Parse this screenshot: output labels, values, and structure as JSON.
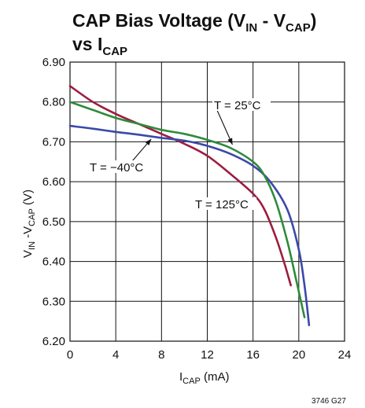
{
  "chart_data": {
    "type": "line",
    "title": {
      "line1_main": "CAP Bias Voltage (V",
      "line1_sub1": "IN",
      "line1_mid": " - V",
      "line1_sub2": "CAP",
      "line1_end": ")",
      "line2_main": "vs I",
      "line2_sub": "CAP"
    },
    "xlabel": {
      "main": "I",
      "sub": "CAP",
      "rest": " (mA)"
    },
    "ylabel": {
      "main1": "V",
      "sub1": "IN",
      "mid": " -V",
      "sub2": "CAP",
      "rest": " (V)"
    },
    "xlim": [
      0,
      24
    ],
    "ylim": [
      6.2,
      6.9
    ],
    "x_ticks": [
      "0",
      "4",
      "8",
      "12",
      "16",
      "20",
      "24"
    ],
    "y_ticks": [
      "6.20",
      "6.30",
      "6.40",
      "6.50",
      "6.60",
      "6.70",
      "6.80",
      "6.90"
    ],
    "grid": true,
    "colors": {
      "t25": "#2e8b3a",
      "tneg40": "#3a49a8",
      "t125": "#9e1c40"
    },
    "series": [
      {
        "name": "T = 25°C",
        "color_key": "t25",
        "points": [
          [
            0,
            6.8
          ],
          [
            2,
            6.78
          ],
          [
            4,
            6.76
          ],
          [
            6,
            6.745
          ],
          [
            8,
            6.73
          ],
          [
            10,
            6.72
          ],
          [
            12,
            6.705
          ],
          [
            14,
            6.685
          ],
          [
            16,
            6.65
          ],
          [
            17,
            6.615
          ],
          [
            18,
            6.55
          ],
          [
            19,
            6.45
          ],
          [
            19.8,
            6.35
          ],
          [
            20.5,
            6.26
          ]
        ]
      },
      {
        "name": "T = −40°C",
        "color_key": "tneg40",
        "points": [
          [
            0,
            6.74
          ],
          [
            2,
            6.733
          ],
          [
            4,
            6.725
          ],
          [
            6,
            6.718
          ],
          [
            8,
            6.71
          ],
          [
            10,
            6.703
          ],
          [
            12,
            6.69
          ],
          [
            14,
            6.67
          ],
          [
            16,
            6.64
          ],
          [
            17.5,
            6.6
          ],
          [
            19,
            6.53
          ],
          [
            20,
            6.43
          ],
          [
            20.5,
            6.34
          ],
          [
            20.9,
            6.24
          ]
        ]
      },
      {
        "name": "T = 125°C",
        "color_key": "t125",
        "points": [
          [
            0,
            6.84
          ],
          [
            2,
            6.8
          ],
          [
            4,
            6.77
          ],
          [
            6,
            6.745
          ],
          [
            8,
            6.72
          ],
          [
            10,
            6.695
          ],
          [
            12,
            6.665
          ],
          [
            14,
            6.62
          ],
          [
            16,
            6.57
          ],
          [
            17,
            6.53
          ],
          [
            18,
            6.46
          ],
          [
            18.8,
            6.39
          ],
          [
            19.3,
            6.34
          ]
        ]
      }
    ],
    "annotations": [
      {
        "text": "T = 25°C",
        "series": "t25",
        "arrow_to": [
          14.2,
          6.685
        ]
      },
      {
        "text": "T = −40°C",
        "series": "tneg40",
        "arrow_to": [
          7.1,
          6.715
        ]
      },
      {
        "text": "T = 125°C",
        "series": "t125"
      }
    ],
    "figure_id": "3746 G27"
  }
}
